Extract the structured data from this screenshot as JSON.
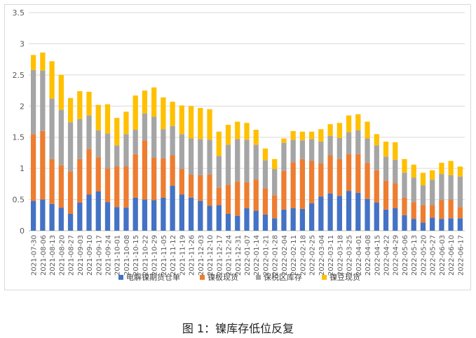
{
  "figure": {
    "caption": "图 1：镍库存低位反复"
  },
  "chart_data": {
    "type": "bar",
    "stacked": true,
    "ylim": [
      0,
      3.5
    ],
    "yticks": [
      "0",
      "0.5",
      "1",
      "1.5",
      "2",
      "2.5",
      "3",
      "3.5"
    ],
    "grid": "horizontal",
    "legend_position": "bottom",
    "categories": [
      "2021-07-30",
      "2021-08-06",
      "2021-08-13",
      "2021-08-20",
      "2021-08-27",
      "2021-09-03",
      "2021-09-10",
      "2021-09-17",
      "2021-09-24",
      "2021-10-01",
      "2021-10-08",
      "2021-10-15",
      "2021-10-22",
      "2021-10-29",
      "2021-11-05",
      "2021-11-12",
      "2021-11-19",
      "2021-11-26",
      "2021-12-03",
      "2021-12-10",
      "2021-12-17",
      "2021-12-24",
      "2021-12-31",
      "2022-01-07",
      "2022-01-14",
      "2022-01-21",
      "2022-01-28",
      "2022-02-04",
      "2022-02-11",
      "2022-02-18",
      "2022-02-25",
      "2022-03-04",
      "2022-03-11",
      "2022-03-18",
      "2022-03-25",
      "2022-04-01",
      "2022-04-08",
      "2022-04-15",
      "2022-04-22",
      "2022-04-29",
      "2022-05-06",
      "2022-05-13",
      "2022-05-20",
      "2022-05-27",
      "2022-06-03",
      "2022-06-10",
      "2022-06-17"
    ],
    "xtick_labels": [
      "2021-07-30",
      "2021-08-06",
      "2021-08-13",
      "2021-08-20",
      "2021-08-27",
      "2021-09-03",
      "2021-09-10",
      "2021-09-17",
      "2021-09-24",
      "2021-10-01",
      "2021-10-08",
      "2021-10-15",
      "2021-10-22",
      "2021-10-29",
      "2021-11-05",
      "2021-11-12",
      "2021-11-19",
      "2021-11-26",
      "2021-12-03",
      "2021-12-10",
      "2021-12-17",
      "2021-12-24",
      "2021-12-31",
      "2022-01-07",
      "2022-01-14",
      "2022-01-21",
      "2022-01-28",
      "2022-02-04",
      "2022-02-11",
      "2022-02-18",
      "2022-02-25",
      "2022-03-04",
      "2022-03-11",
      "2022-03-18",
      "2022-03-25",
      "2022-04-01",
      "2022-04-08",
      "2022-04-15",
      "2022-04-22",
      "2022-04-29",
      "2022-05-06",
      "2022-05-13",
      "2022-05-20",
      "2022-05-27",
      "2022-06-03",
      "2022-06-10",
      "2022-06-17"
    ],
    "series": [
      {
        "name": "电解镍期货仓单",
        "color": "#4472C4",
        "values": [
          0.48,
          0.5,
          0.43,
          0.37,
          0.27,
          0.45,
          0.58,
          0.63,
          0.46,
          0.38,
          0.37,
          0.53,
          0.5,
          0.49,
          0.53,
          0.72,
          0.58,
          0.53,
          0.48,
          0.4,
          0.41,
          0.27,
          0.24,
          0.36,
          0.32,
          0.26,
          0.2,
          0.34,
          0.36,
          0.35,
          0.44,
          0.55,
          0.6,
          0.56,
          0.64,
          0.61,
          0.51,
          0.45,
          0.34,
          0.36,
          0.25,
          0.19,
          0.13,
          0.21,
          0.19,
          0.2,
          0.2
        ]
      },
      {
        "name": "镍板现货",
        "color": "#ED7D31",
        "values": [
          1.07,
          1.1,
          0.72,
          0.68,
          0.68,
          0.7,
          0.73,
          0.55,
          0.54,
          0.65,
          0.66,
          0.7,
          0.95,
          0.68,
          0.63,
          0.49,
          0.41,
          0.37,
          0.41,
          0.5,
          0.28,
          0.47,
          0.55,
          0.42,
          0.5,
          0.42,
          0.37,
          0.62,
          0.74,
          0.8,
          0.68,
          0.53,
          0.61,
          0.59,
          0.59,
          0.62,
          0.58,
          0.52,
          0.46,
          0.4,
          0.28,
          0.27,
          0.28,
          0.2,
          0.3,
          0.3,
          0.18
        ]
      },
      {
        "name": "保税区库存",
        "color": "#A5A5A5",
        "values": [
          1.03,
          0.97,
          0.97,
          0.89,
          0.79,
          0.64,
          0.54,
          0.43,
          0.56,
          0.34,
          0.52,
          0.39,
          0.43,
          0.66,
          0.47,
          0.47,
          0.56,
          0.58,
          0.58,
          0.56,
          0.51,
          0.64,
          0.68,
          0.68,
          0.56,
          0.45,
          0.42,
          0.45,
          0.36,
          0.3,
          0.35,
          0.35,
          0.31,
          0.34,
          0.35,
          0.38,
          0.39,
          0.4,
          0.39,
          0.38,
          0.4,
          0.39,
          0.32,
          0.41,
          0.42,
          0.39,
          0.49
        ]
      },
      {
        "name": "镍豆现货",
        "color": "#FFC000",
        "values": [
          0.24,
          0.29,
          0.6,
          0.56,
          0.39,
          0.45,
          0.38,
          0.41,
          0.47,
          0.44,
          0.36,
          0.55,
          0.37,
          0.47,
          0.51,
          0.39,
          0.46,
          0.52,
          0.5,
          0.49,
          0.39,
          0.32,
          0.28,
          0.27,
          0.24,
          0.19,
          0.16,
          0.07,
          0.14,
          0.14,
          0.12,
          0.2,
          0.19,
          0.24,
          0.27,
          0.26,
          0.27,
          0.18,
          0.24,
          0.28,
          0.22,
          0.21,
          0.2,
          0.15,
          0.18,
          0.23,
          0.16
        ]
      }
    ]
  }
}
